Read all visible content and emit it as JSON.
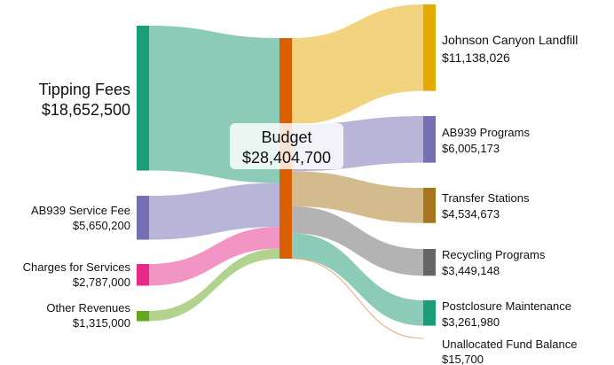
{
  "chart_data": {
    "type": "sankey",
    "title": "",
    "center": {
      "name": "Budget",
      "value": 28404700,
      "value_label": "$28,404,700",
      "color": "#d95f02"
    },
    "sources": [
      {
        "name": "Tipping Fees",
        "value": 18652500,
        "value_label": "$18,652,500",
        "node_color": "#1b9e77",
        "link_color": "#8ccbb8"
      },
      {
        "name": "AB939 Service Fee",
        "value": 5650200,
        "value_label": "$5,650,200",
        "node_color": "#7570b3",
        "link_color": "#b8b5d9"
      },
      {
        "name": "Charges for Services",
        "value": 2787000,
        "value_label": "$2,787,000",
        "node_color": "#e7298a",
        "link_color": "#f294c4"
      },
      {
        "name": "Other Revenues",
        "value": 1315000,
        "value_label": "$1,315,000",
        "node_color": "#66a61e",
        "link_color": "#b2d38e"
      }
    ],
    "targets": [
      {
        "name": "Johnson Canyon Landfill",
        "value": 11138026,
        "value_label": "$11,138,026",
        "node_color": "#e6ab02",
        "link_color": "#f2d37f"
      },
      {
        "name": "AB939 Programs",
        "value": 6005173,
        "value_label": "$6,005,173",
        "node_color": "#7570b3",
        "link_color": "#b8b5d9"
      },
      {
        "name": "Transfer Stations",
        "value": 4534673,
        "value_label": "$4,534,673",
        "node_color": "#a6761d",
        "link_color": "#d3bb8e"
      },
      {
        "name": "Recycling Programs",
        "value": 3449148,
        "value_label": "$3,449,148",
        "node_color": "#666666",
        "link_color": "#b3b3b3"
      },
      {
        "name": "Postclosure Maintenance",
        "value": 3261980,
        "value_label": "$3,261,980",
        "node_color": "#1b9e77",
        "link_color": "#8ccbb8"
      },
      {
        "name": "Unallocated Fund Balance",
        "value": 15700,
        "value_label": "$15,700",
        "node_color": "#d95f02",
        "link_color": "#f0a878"
      }
    ]
  }
}
